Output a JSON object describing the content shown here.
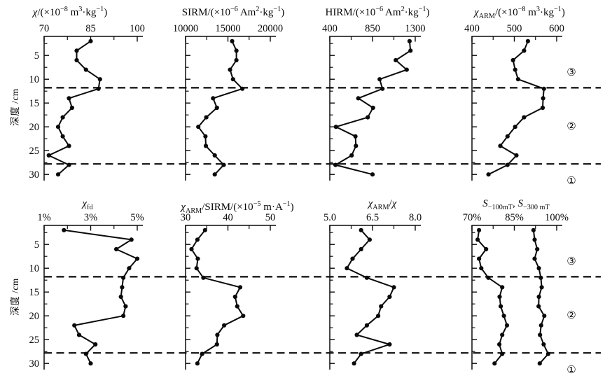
{
  "figure": {
    "background": "#ffffff",
    "ink_color": "#0a0a0a"
  },
  "chart_data": {
    "type": "line",
    "layout": "2 rows x 4 columns of vertical depth profiles, depth increases downward, x-axis on top, shared dashed boundary lines across full width",
    "depth_cm": [
      2,
      4,
      6,
      8,
      10,
      12,
      14,
      16,
      18,
      20,
      22,
      24,
      26,
      28,
      30
    ],
    "depth_axis": {
      "label": "深度 /cm",
      "major_ticks": [
        5,
        10,
        15,
        20,
        25,
        30
      ],
      "minor_ticks": [
        2.5,
        7.5,
        12.5,
        17.5,
        22.5,
        27.5
      ],
      "range": [
        1,
        31.3
      ]
    },
    "boundaries_cm": [
      11.8,
      27.8
    ],
    "zone_labels": [
      {
        "text": "③",
        "depth": 8.6
      },
      {
        "text": "②",
        "depth": 20.0
      },
      {
        "text": "①",
        "depth": 31.5
      }
    ],
    "panels": [
      {
        "title": "χ/(×10^{−8} m^{3}·kg^{−1})",
        "xlim": [
          70,
          100
        ],
        "xticks": [
          {
            "label": "70",
            "value": 70
          },
          {
            "label": "85",
            "value": 85
          },
          {
            "label": "100",
            "value": 100
          }
        ],
        "series": [
          {
            "name": "χ",
            "values": [
              85,
              80.5,
              80.5,
              83.5,
              88,
              87.5,
              78,
              79,
              76,
              74.5,
              76,
              78,
              71.5,
              78,
              74.5
            ]
          }
        ]
      },
      {
        "title": "SIRM/(×10^{−6} Am^{2}·kg^{−1})",
        "xlim": [
          10000,
          20000
        ],
        "xticks": [
          {
            "label": "10000",
            "value": 10000
          },
          {
            "label": "15000",
            "value": 15000
          },
          {
            "label": "20000",
            "value": 20000
          }
        ],
        "series": [
          {
            "name": "SIRM",
            "values": [
              15500,
              16000,
              16000,
              15250,
              15600,
              16700,
              13250,
              13700,
              12450,
              11500,
              12350,
              12400,
              13450,
              14500,
              13450
            ]
          }
        ]
      },
      {
        "title": "HIRM/(×10^{−6} Am^{2}·kg^{−1})",
        "xlim": [
          400,
          1300
        ],
        "xticks": [
          {
            "label": "400",
            "value": 400
          },
          {
            "label": "850",
            "value": 850
          },
          {
            "label": "1300",
            "value": 1300
          }
        ],
        "series": [
          {
            "name": "HIRM",
            "values": [
              1240,
              1250,
              1095,
              1210,
              925,
              955,
              700,
              855,
              800,
              465,
              670,
              675,
              630,
              460,
              850
            ]
          }
        ]
      },
      {
        "title": "χ_{ARM}/(×10^{−8} m^{3}·kg^{−1})",
        "xlim": [
          400,
          600
        ],
        "xticks": [
          {
            "label": "400",
            "value": 400
          },
          {
            "label": "500",
            "value": 500
          },
          {
            "label": "600",
            "value": 600
          }
        ],
        "series": [
          {
            "name": "χARM",
            "values": [
              532,
              523,
              497,
              502,
              509,
              570,
              568,
              567,
              523,
              502,
              484,
              467,
              505,
              484,
              439
            ]
          }
        ]
      },
      {
        "title": "χ_{fd}",
        "xlim": [
          1,
          5
        ],
        "xticks": [
          {
            "label": "1%",
            "value": 1
          },
          {
            "label": "3%",
            "value": 3
          },
          {
            "label": "5%",
            "value": 5
          }
        ],
        "series": [
          {
            "name": "χfd (%)",
            "values": [
              1.85,
              4.75,
              4.1,
              5.0,
              4.65,
              4.4,
              4.35,
              4.3,
              4.5,
              4.4,
              2.3,
              2.5,
              3.2,
              2.8,
              3.0
            ]
          }
        ]
      },
      {
        "title": "χ_{ARM}/SIRM/(×10^{−5} m·A^{−1})",
        "xlim": [
          30,
          50
        ],
        "xticks": [
          {
            "label": "30",
            "value": 30
          },
          {
            "label": "40",
            "value": 40
          },
          {
            "label": "50",
            "value": 50
          }
        ],
        "series": [
          {
            "name": "χARM/SIRM",
            "values": [
              34.6,
              32.8,
              31.4,
              32.9,
              32.6,
              34.2,
              42.9,
              41.7,
              42.2,
              43.6,
              39.1,
              37.5,
              37.4,
              33.9,
              32.8
            ]
          }
        ]
      },
      {
        "title": "χ_{ARM}/χ",
        "xlim": [
          5,
          8
        ],
        "xticks": [
          {
            "label": "5.0",
            "value": 5
          },
          {
            "label": "6.5",
            "value": 6.5
          },
          {
            "label": "8.0",
            "value": 8
          }
        ],
        "series": [
          {
            "name": "χARM/χ",
            "values": [
              6.1,
              6.4,
              6.1,
              5.8,
              5.6,
              6.3,
              7.25,
              7.1,
              6.8,
              6.7,
              6.3,
              5.95,
              7.1,
              6.1,
              5.85
            ]
          }
        ]
      },
      {
        "title": "S_{−100mT}, S_{−300 mT}",
        "xlim": [
          70,
          100
        ],
        "xticks": [
          {
            "label": "70%",
            "value": 70
          },
          {
            "label": "85%",
            "value": 85
          },
          {
            "label": "100%",
            "value": 100
          }
        ],
        "series": [
          {
            "name": "S−100mT",
            "values": [
              72.5,
              72,
              75,
              72.5,
              73.3,
              75.8,
              80.7,
              79.8,
              80.2,
              81.3,
              82.4,
              80.7,
              79.7,
              80.7,
              78
            ]
          },
          {
            "name": "S−300mT",
            "values": [
              91.8,
              92.2,
              93.1,
              92.2,
              93.7,
              94.4,
              94.7,
              93.7,
              93.6,
              95.6,
              94.5,
              94.1,
              95.4,
              97,
              94
            ]
          }
        ]
      }
    ]
  }
}
